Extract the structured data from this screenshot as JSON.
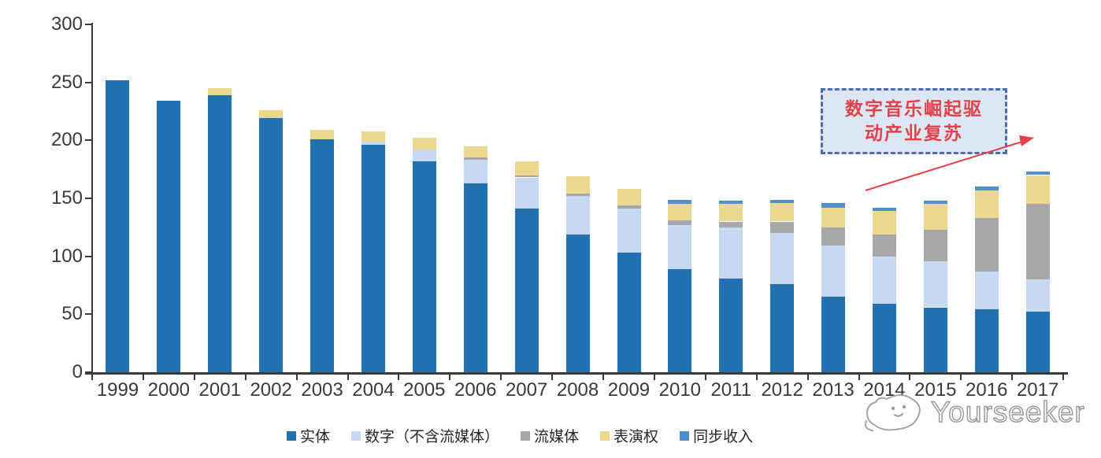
{
  "chart_data": {
    "type": "bar",
    "stacked": true,
    "categories": [
      "1999",
      "2000",
      "2001",
      "2002",
      "2003",
      "2004",
      "2005",
      "2006",
      "2007",
      "2008",
      "2009",
      "2010",
      "2011",
      "2012",
      "2013",
      "2014",
      "2015",
      "2016",
      "2017"
    ],
    "series": [
      {
        "key": "physical",
        "name": "实体",
        "color": "#2272B1",
        "values": [
          252,
          234,
          239,
          219,
          201,
          196,
          182,
          163,
          141,
          119,
          103,
          89,
          81,
          76,
          65,
          59,
          56,
          54,
          52
        ]
      },
      {
        "key": "digital",
        "name": "数字（不含流媒体）",
        "color": "#C5D9F0",
        "values": [
          0,
          0,
          0,
          0,
          0,
          3,
          10,
          20,
          27,
          33,
          38,
          38,
          44,
          44,
          44,
          41,
          40,
          33,
          28
        ]
      },
      {
        "key": "streaming",
        "name": "流媒体",
        "color": "#A8A8A8",
        "values": [
          0,
          0,
          0,
          0,
          0,
          0,
          0,
          2,
          2,
          2,
          3,
          4,
          5,
          10,
          16,
          19,
          27,
          46,
          65
        ]
      },
      {
        "key": "performance",
        "name": "表演权",
        "color": "#EBD78D",
        "values": [
          0,
          0,
          6,
          7,
          8,
          9,
          10,
          10,
          12,
          15,
          14,
          14,
          15,
          16,
          17,
          20,
          22,
          24,
          25
        ]
      },
      {
        "key": "sync",
        "name": "同步收入",
        "color": "#4E8ECB",
        "values": [
          0,
          0,
          0,
          0,
          0,
          0,
          0,
          0,
          0,
          0,
          0,
          4,
          3,
          3,
          4,
          3,
          3,
          3,
          3
        ]
      }
    ],
    "ylim": [
      0,
      300
    ],
    "yticks": [
      0,
      50,
      100,
      150,
      200,
      250,
      300
    ],
    "grid": false,
    "legend_position": "bottom",
    "axis_color": "#3a3a3a"
  },
  "annotation": {
    "line1": "数字音乐崛起驱",
    "line2": "动产业复苏",
    "box_fill": "#DDE7F4",
    "border_color": "#4B6CB0",
    "text_color": "#E2414B",
    "arrow_color": "#E2414B"
  },
  "watermark": {
    "text": "Yourseeker"
  }
}
